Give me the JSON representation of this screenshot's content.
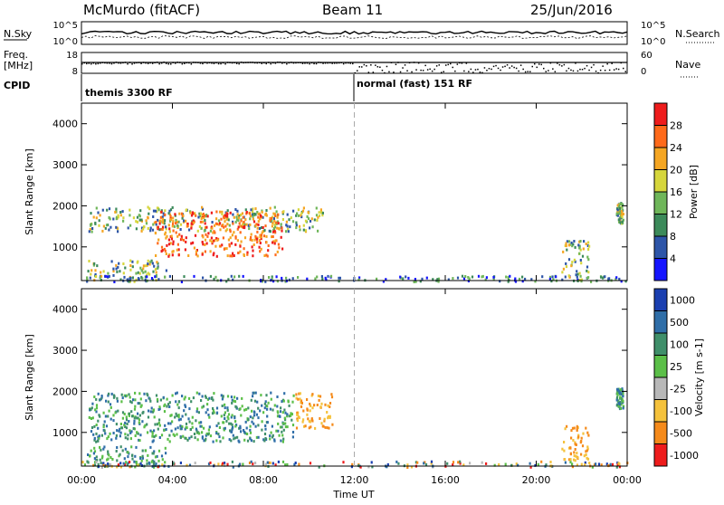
{
  "header": {
    "station": "McMurdo (fitACF)",
    "beam": "Beam 11",
    "date": "25/Jun/2016"
  },
  "noise_panel": {
    "left_label": "N.Sky",
    "right_label": "N.Search",
    "left_ticks": [
      "10^5",
      "10^0"
    ],
    "right_ticks": [
      "10^5",
      "10^0"
    ]
  },
  "freq_panel": {
    "left_label_line1": "Freq.",
    "left_label_line2": "[MHz]",
    "left_ticks": [
      "18",
      "8"
    ],
    "right_label": "Nave",
    "right_ticks": [
      "60",
      "0"
    ]
  },
  "cpid": {
    "label": "CPID",
    "segments": [
      {
        "name": "themis 3300 RF",
        "start_hour": 0
      },
      {
        "name": "normal (fast) 151 RF",
        "start_hour": 12
      }
    ]
  },
  "chart_data": [
    {
      "type": "heatmap",
      "parameter": "Power",
      "ylabel": "Slant Range [km]",
      "colorbar_label": "Power [dB]",
      "ylim": [
        180,
        4500
      ],
      "y_ticks": [
        "1000",
        "2000",
        "3000",
        "4000"
      ],
      "colorbar_ticks": [
        "4",
        "8",
        "12",
        "16",
        "20",
        "24",
        "28"
      ],
      "colorbar_colors": [
        "#1515ff",
        "#2d55a8",
        "#3c8a5a",
        "#6fb65a",
        "#d6d63c",
        "#f5a623",
        "#ff6a1a",
        "#ee1c1c"
      ],
      "x_ticks": [
        "00:00",
        "04:00",
        "08:00",
        "12:00",
        "16:00",
        "20:00",
        "00:00"
      ],
      "xlim_hours": [
        0,
        24
      ],
      "regions": [
        {
          "t0": 0.3,
          "t1": 10.6,
          "r0": 1400,
          "r1": 2000,
          "level": "moderate"
        },
        {
          "t0": 3.2,
          "t1": 8.8,
          "r0": 800,
          "r1": 1900,
          "level": "strong"
        },
        {
          "t0": 0.2,
          "t1": 3.7,
          "r0": 180,
          "r1": 700,
          "level": "moderate"
        },
        {
          "t0": 0.0,
          "t1": 24.0,
          "r0": 180,
          "r1": 320,
          "level": "weak"
        },
        {
          "t0": 21.1,
          "t1": 22.3,
          "r0": 180,
          "r1": 1200,
          "level": "moderate"
        },
        {
          "t0": 23.5,
          "t1": 23.8,
          "r0": 1600,
          "r1": 2100,
          "level": "moderate"
        }
      ]
    },
    {
      "type": "heatmap",
      "parameter": "Velocity",
      "ylabel": "Slant Range [km]",
      "colorbar_label": "Velocity [m s-1]",
      "ylim": [
        180,
        4500
      ],
      "y_ticks": [
        "1000",
        "2000",
        "3000",
        "4000"
      ],
      "colorbar_ticks": [
        "1000",
        "500",
        "100",
        "25",
        "-25",
        "-100",
        "-500",
        "-1000"
      ],
      "colorbar_colors": [
        "#1a3fb0",
        "#2f6ea8",
        "#3f8f6a",
        "#5bbf48",
        "#b8b8b8",
        "#f5c23c",
        "#f58a1a",
        "#ee1c1c"
      ],
      "x_ticks": [
        "00:00",
        "04:00",
        "08:00",
        "12:00",
        "16:00",
        "20:00",
        "00:00"
      ],
      "xlabel": "Time UT",
      "xlim_hours": [
        0,
        24
      ],
      "regions": [
        {
          "t0": 0.3,
          "t1": 9.3,
          "r0": 800,
          "r1": 2000,
          "level": "positive"
        },
        {
          "t0": 9.4,
          "t1": 11.0,
          "r0": 1100,
          "r1": 2000,
          "level": "negative"
        },
        {
          "t0": 0.2,
          "t1": 3.7,
          "r0": 180,
          "r1": 700,
          "level": "positive"
        },
        {
          "t0": 0.0,
          "t1": 24.0,
          "r0": 180,
          "r1": 320,
          "level": "mixed"
        },
        {
          "t0": 21.1,
          "t1": 22.3,
          "r0": 180,
          "r1": 1200,
          "level": "negative"
        },
        {
          "t0": 23.5,
          "t1": 23.8,
          "r0": 1600,
          "r1": 2100,
          "level": "positive"
        }
      ]
    }
  ]
}
